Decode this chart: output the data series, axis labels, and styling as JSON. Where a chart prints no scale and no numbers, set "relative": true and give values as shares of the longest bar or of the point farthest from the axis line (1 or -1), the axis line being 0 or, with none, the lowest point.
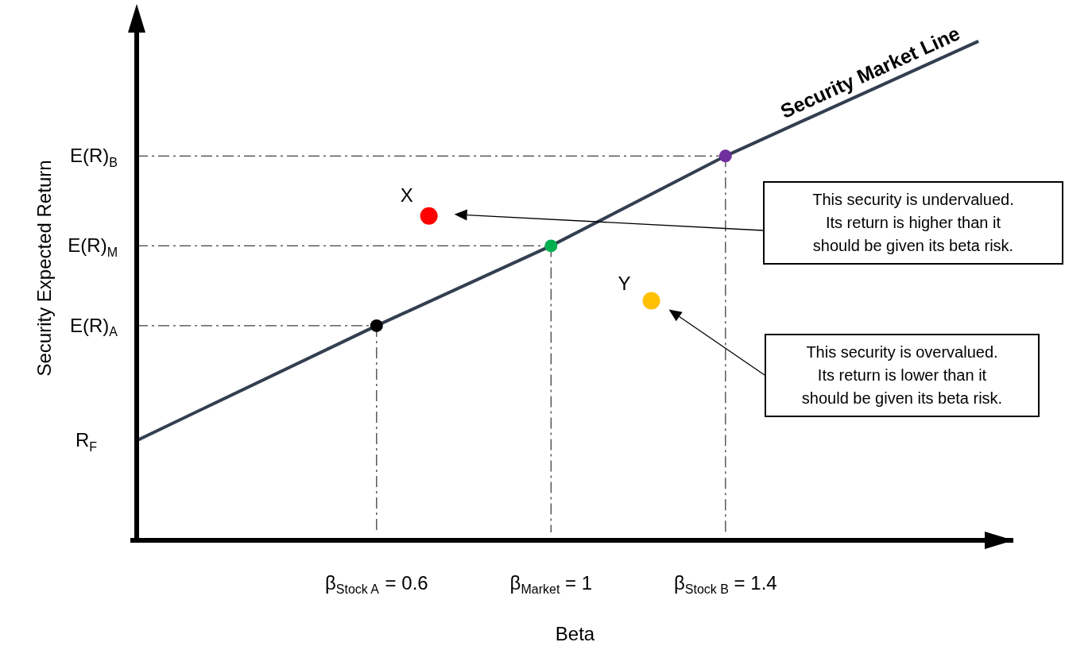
{
  "chart_data": {
    "type": "scatter",
    "xlabel": "Beta",
    "ylabel": "Security Expected Return",
    "relative": true,
    "marker": "circle",
    "xlim": [
      0.05,
      2.06
    ],
    "xticks": [
      {
        "value": 0.6,
        "label": "β$_{Stock A}$ = 0.6"
      },
      {
        "value": 1,
        "label": "β$_{Market}$ = 1"
      },
      {
        "value": 1.4,
        "label": "β$_{Stock B}$ = 1.4"
      }
    ],
    "series": [
      {
        "type": "line",
        "name": "Security Market Line",
        "color": "#333f50",
        "marker": "none",
        "x": [
          0.05,
          0.6,
          1,
          1.4,
          1.98
        ],
        "values": [
          0.2,
          0.43,
          0.59,
          0.77,
          1.0
        ]
      },
      {
        "type": "scatter",
        "colors": [
          "#000000",
          "#00b050",
          "#7030a0"
        ],
        "x": [
          0.6,
          1,
          1.4
        ],
        "values": [
          0.43,
          0.59,
          0.77
        ]
      },
      {
        "type": "scatter",
        "colors": [
          "#ff0000",
          "#ffc000"
        ],
        "x": [
          0.72,
          1.23
        ],
        "values": [
          0.65,
          0.48
        ]
      }
    ],
    "ref_lines": [
      {
        "axis": "y",
        "value": 0.77,
        "label": "E(R)$_{B}$",
        "line_style": "dashed",
        "color": "#404040"
      },
      {
        "axis": "y",
        "value": 0.59,
        "label": "E(R)$_{M}$",
        "line_style": "dashed",
        "color": "#404040"
      },
      {
        "axis": "y",
        "value": 0.43,
        "label": "E(R)$_{A}$",
        "line_style": "dashed",
        "color": "#404040"
      },
      {
        "axis": "x",
        "value": 0.6,
        "line_style": "dashed",
        "color": "#404040"
      },
      {
        "axis": "x",
        "value": 1,
        "line_style": "dashed",
        "color": "#404040"
      },
      {
        "axis": "x",
        "value": 1.4,
        "line_style": "dashed",
        "color": "#404040"
      }
    ],
    "annotations": [
      {
        "text": "R$_{F}$",
        "x": 0.05,
        "y": 0.2
      },
      {
        "text": "X",
        "x": 0.72,
        "y": 0.65
      },
      {
        "text": "Y",
        "x": 1.23,
        "y": 0.48
      },
      "This security is undervalued.\nIts return is higher than it\nshould be given its beta risk.",
      "This security is overvalued.\nIts return is lower than it\nshould be given its beta risk."
    ]
  }
}
